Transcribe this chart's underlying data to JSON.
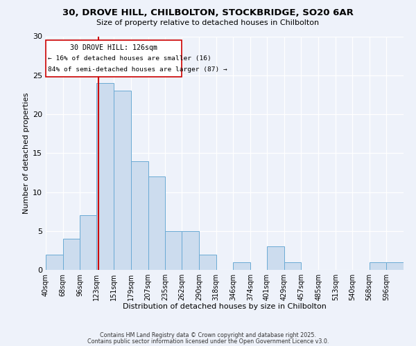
{
  "title_line1": "30, DROVE HILL, CHILBOLTON, STOCKBRIDGE, SO20 6AR",
  "title_line2": "Size of property relative to detached houses in Chilbolton",
  "xlabel": "Distribution of detached houses by size in Chilbolton",
  "ylabel": "Number of detached properties",
  "bin_labels": [
    "40sqm",
    "68sqm",
    "96sqm",
    "123sqm",
    "151sqm",
    "179sqm",
    "207sqm",
    "235sqm",
    "262sqm",
    "290sqm",
    "318sqm",
    "346sqm",
    "374sqm",
    "401sqm",
    "429sqm",
    "457sqm",
    "485sqm",
    "513sqm",
    "540sqm",
    "568sqm",
    "596sqm"
  ],
  "bin_edges": [
    40,
    68,
    96,
    123,
    151,
    179,
    207,
    235,
    262,
    290,
    318,
    346,
    374,
    401,
    429,
    457,
    485,
    513,
    540,
    568,
    596,
    624
  ],
  "counts": [
    2,
    4,
    7,
    24,
    23,
    14,
    12,
    5,
    5,
    2,
    0,
    1,
    0,
    3,
    1,
    0,
    0,
    0,
    0,
    1,
    1
  ],
  "bar_color": "#ccdcee",
  "bar_edgecolor": "#6aaad4",
  "reference_line_x": 126,
  "reference_line_color": "#cc0000",
  "annotation_title": "30 DROVE HILL: 126sqm",
  "annotation_line1": "← 16% of detached houses are smaller (16)",
  "annotation_line2": "84% of semi-detached houses are larger (87) →",
  "annotation_box_edgecolor": "#cc0000",
  "ylim": [
    0,
    30
  ],
  "yticks": [
    0,
    5,
    10,
    15,
    20,
    25,
    30
  ],
  "background_color": "#eef2fa",
  "footer_line1": "Contains HM Land Registry data © Crown copyright and database right 2025.",
  "footer_line2": "Contains public sector information licensed under the Open Government Licence v3.0."
}
